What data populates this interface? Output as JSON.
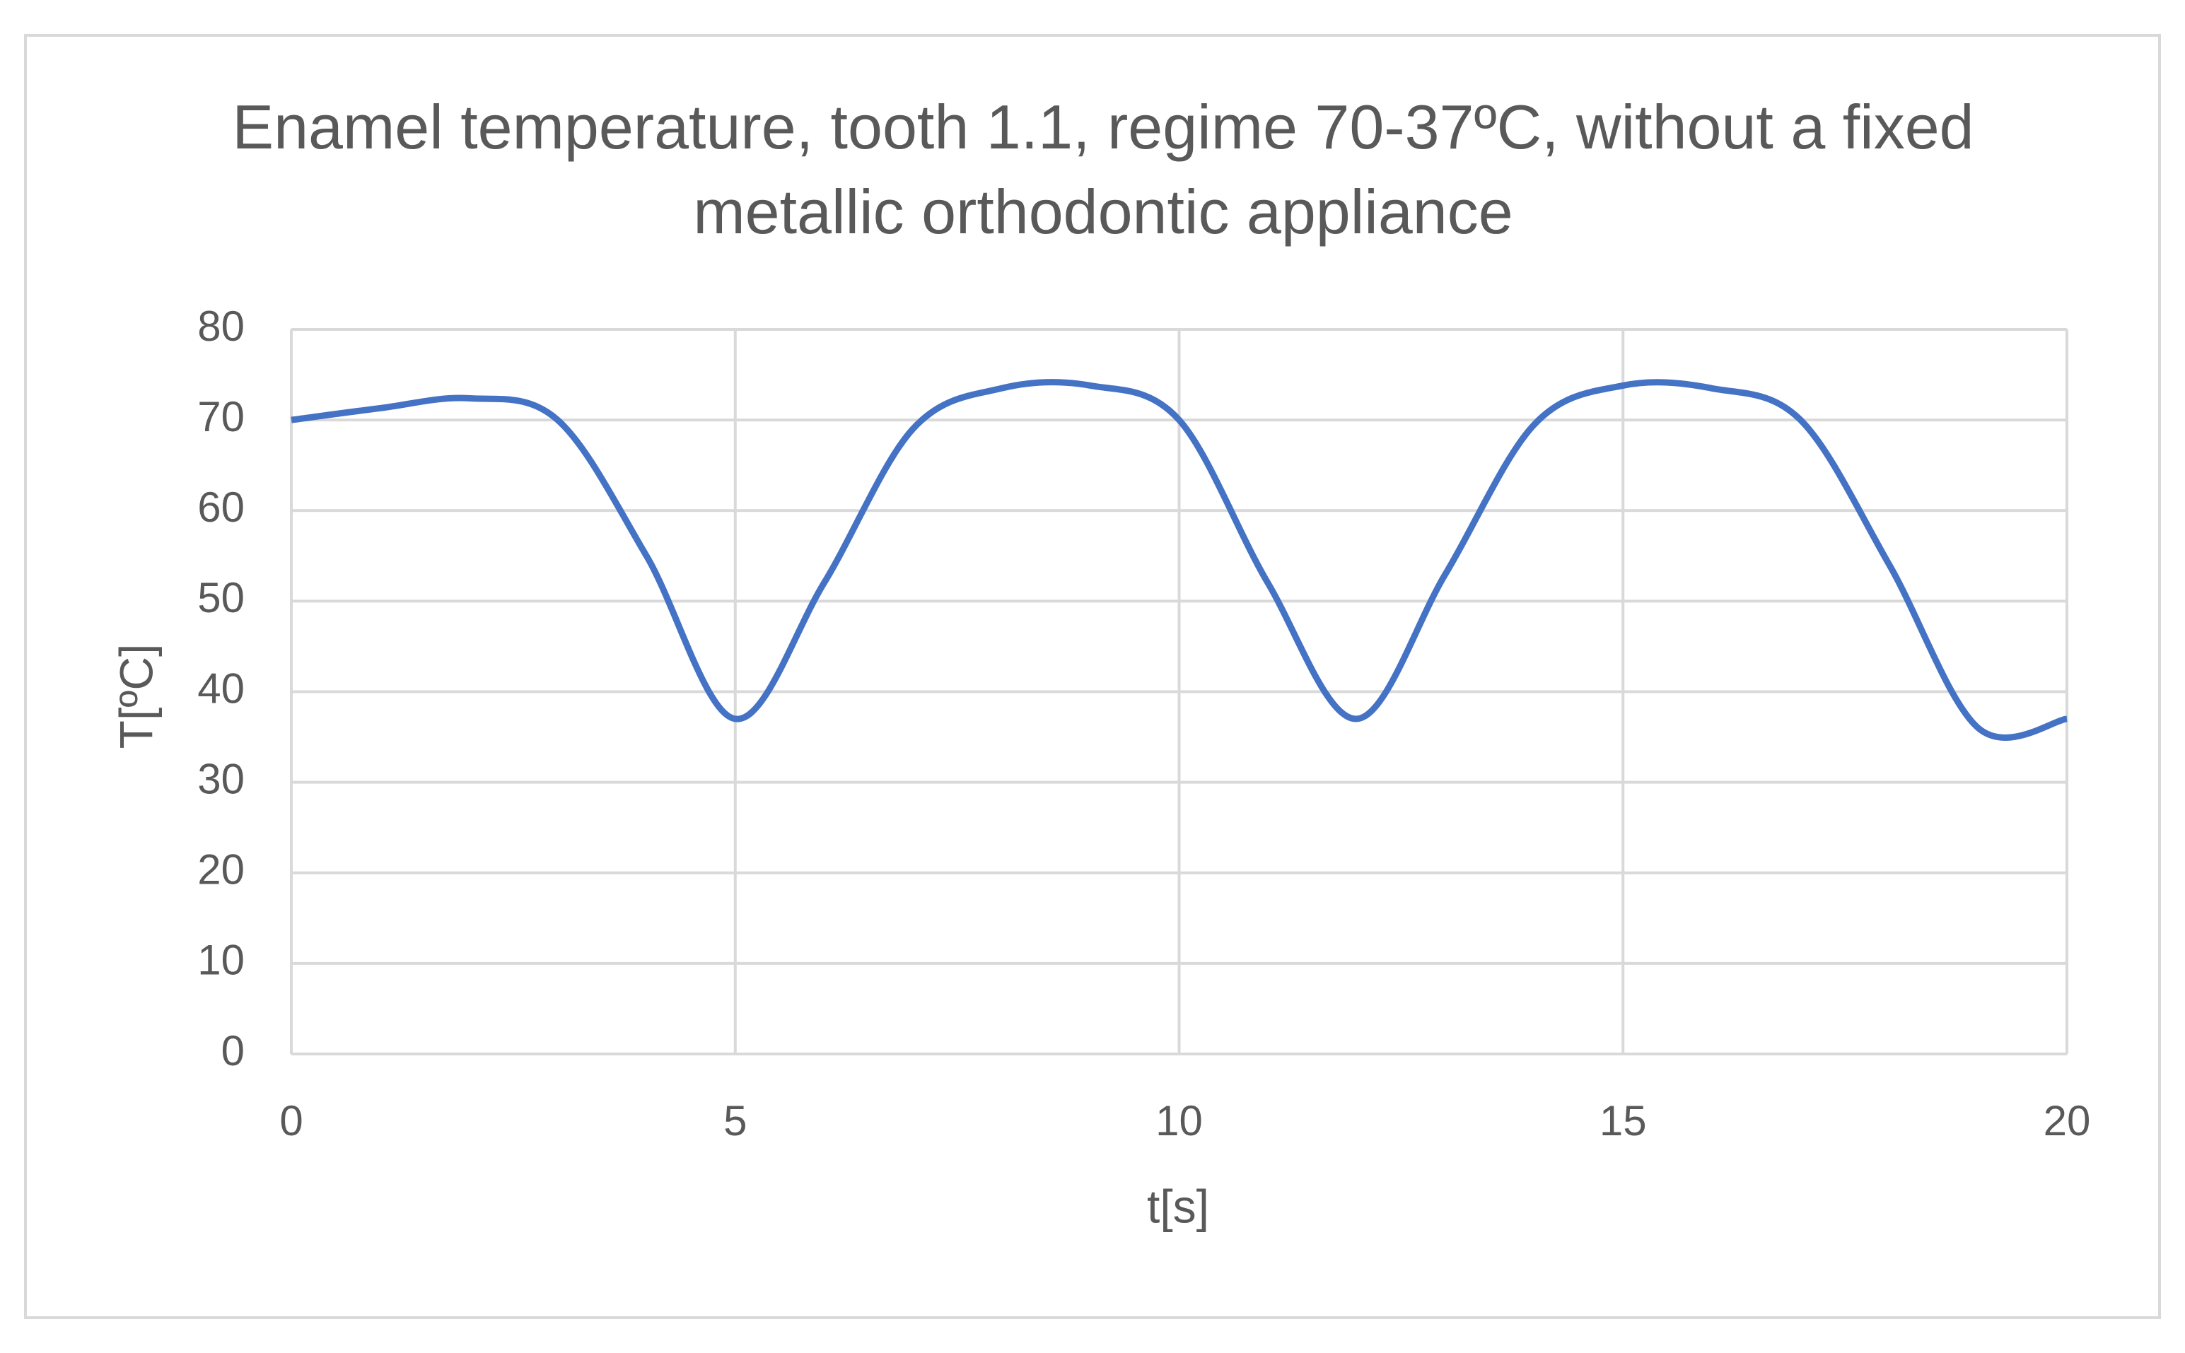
{
  "chart_data": {
    "type": "line",
    "title": "Enamel temperature, tooth 1.1, regime 70-37ºC, without a fixed metallic orthodontic appliance",
    "x_label": "t[s]",
    "y_label": "T[ºC]",
    "x": [
      0,
      1,
      2,
      3,
      4,
      5,
      6,
      7,
      8,
      9,
      10,
      11,
      12,
      13,
      14,
      15,
      16,
      17,
      18,
      19,
      20
    ],
    "series": [
      {
        "name": "Enamel temperature",
        "color": "#4472c4",
        "values": [
          70,
          71.3,
          72.4,
          70,
          55,
          37,
          52,
          69,
          73.5,
          73.8,
          70,
          52,
          37,
          53,
          69.5,
          73.8,
          73.5,
          70,
          54,
          36,
          37
        ]
      }
    ],
    "xlim": [
      0,
      20
    ],
    "xticks": [
      0,
      5,
      10,
      15,
      20
    ],
    "ylim": [
      0,
      80
    ],
    "yticks": [
      0,
      10,
      20,
      30,
      40,
      50,
      60,
      70,
      80
    ],
    "grid": true
  }
}
